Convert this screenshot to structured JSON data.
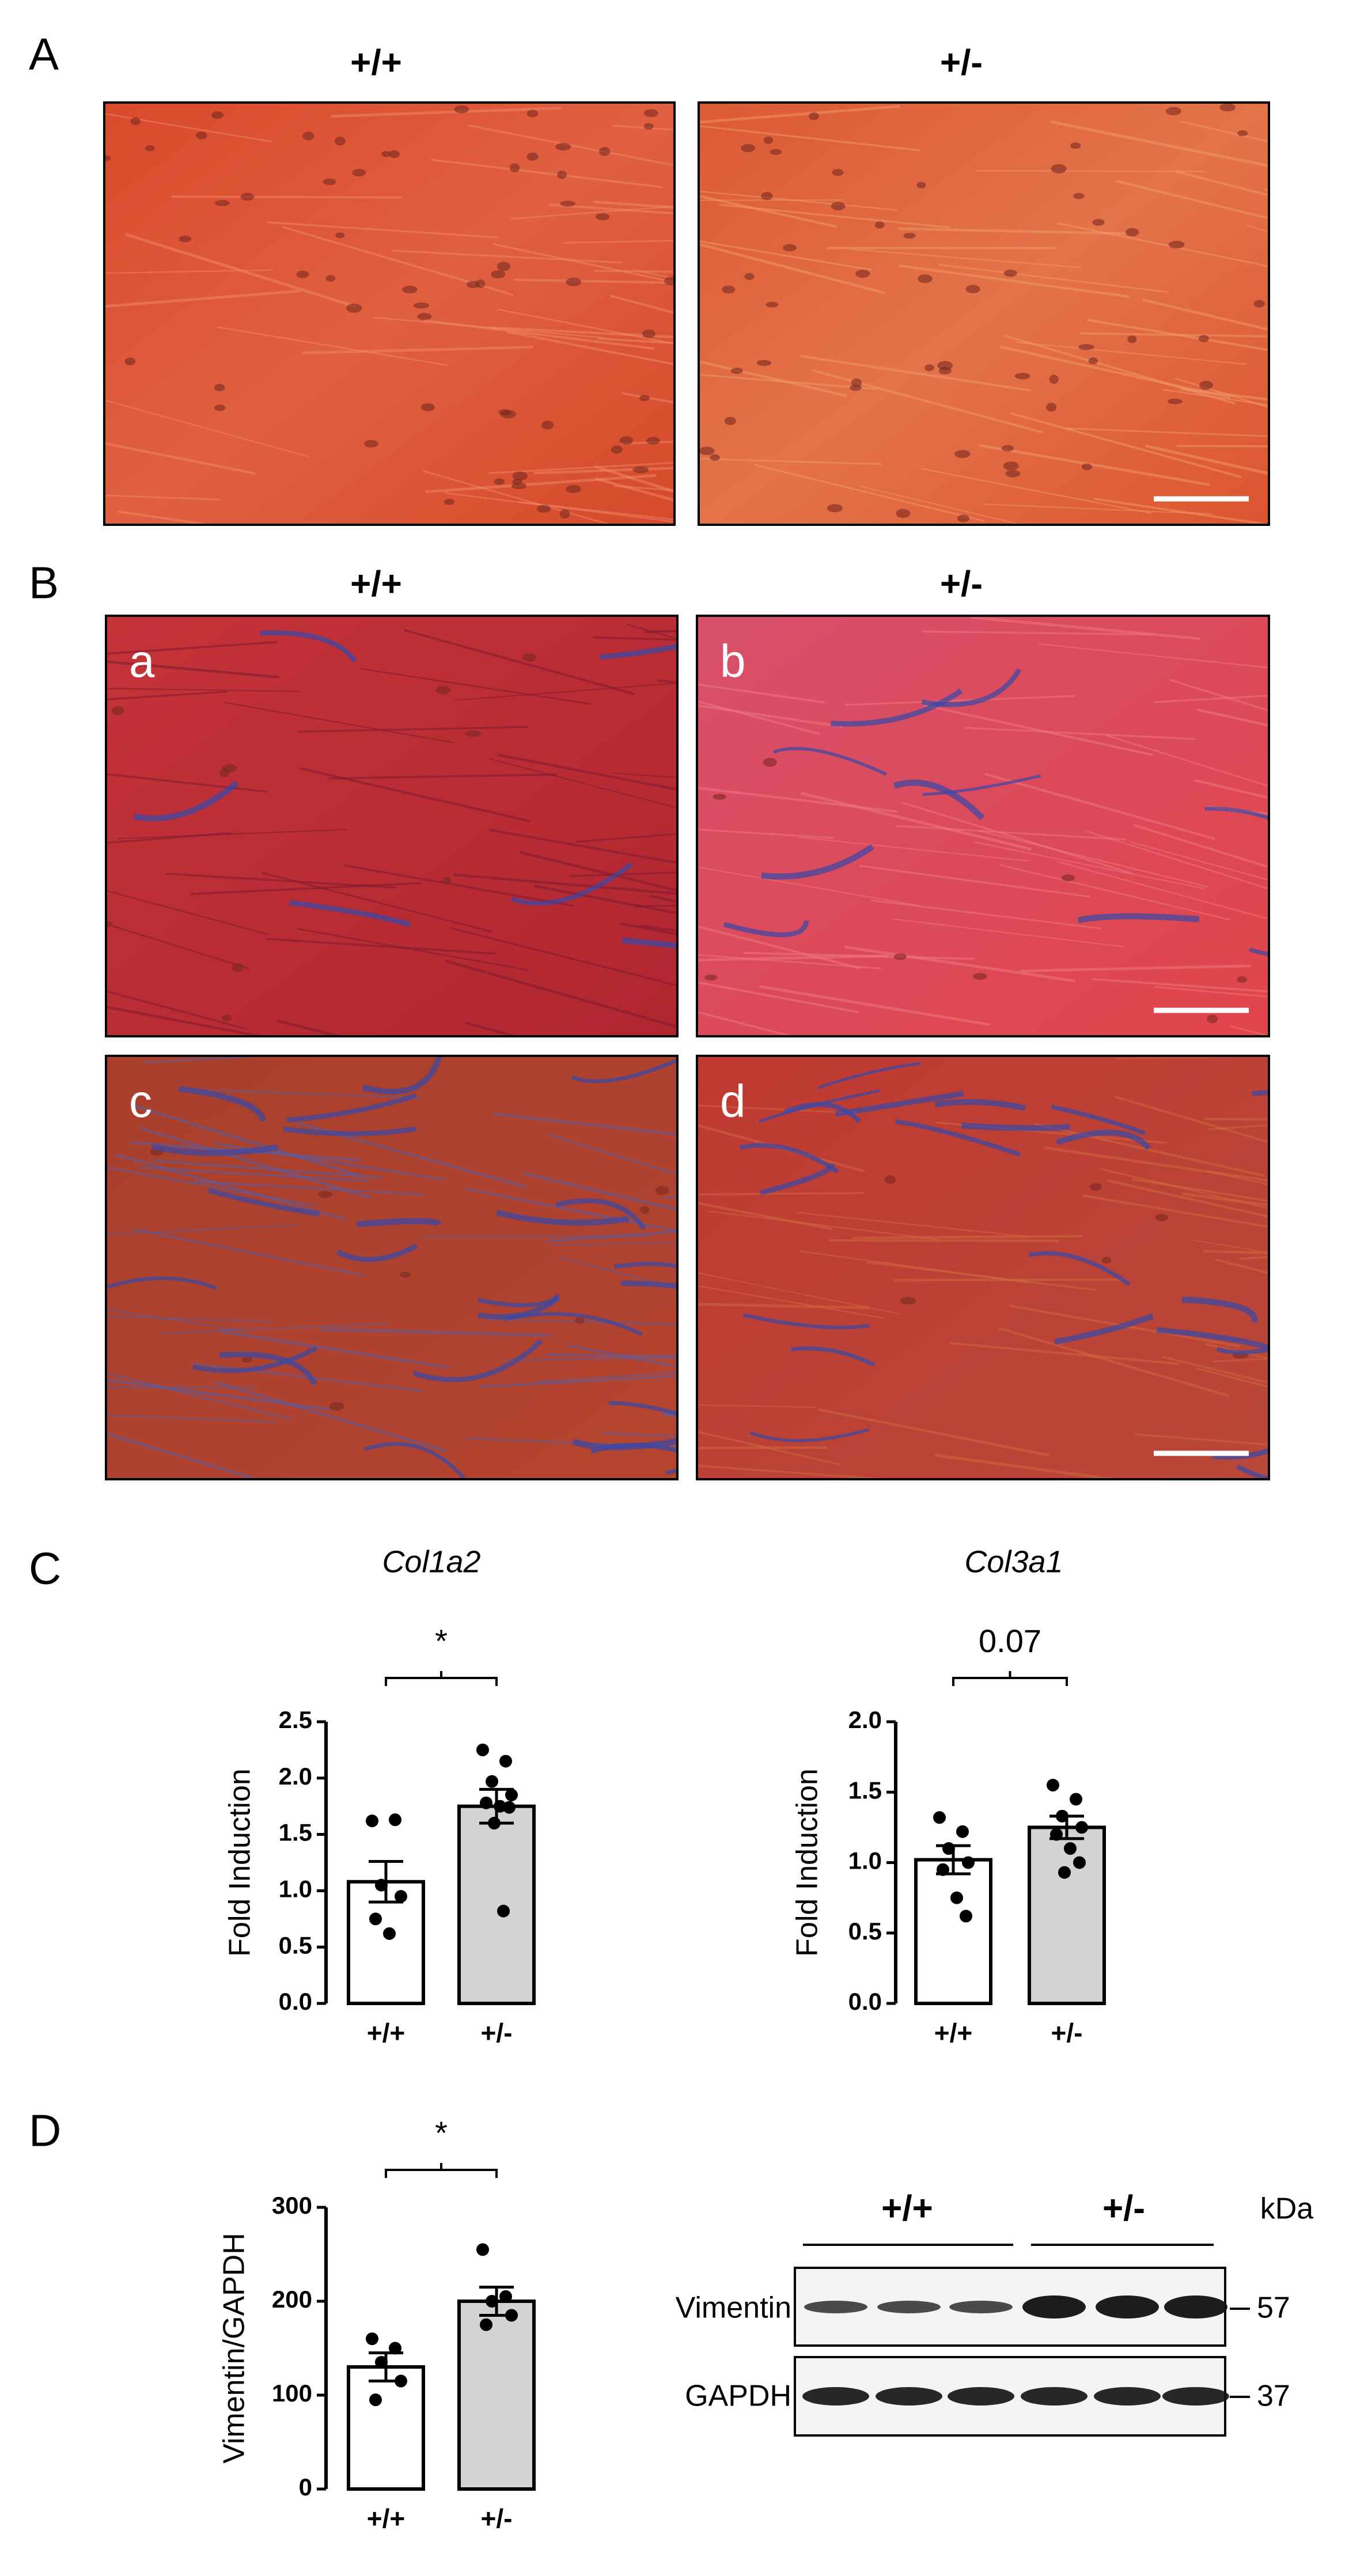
{
  "panels": {
    "A": {
      "label": "A",
      "col_left": "+/+",
      "col_right": "+/-"
    },
    "B": {
      "label": "B",
      "col_left": "+/+",
      "col_right": "+/-",
      "images": [
        "a",
        "b",
        "c",
        "d"
      ]
    },
    "C": {
      "label": "C"
    },
    "D": {
      "label": "D",
      "blot": {
        "groups": [
          "+/+",
          "+/-"
        ],
        "unit": "kDa",
        "rows": [
          {
            "name": "Vimentin",
            "size": "57"
          },
          {
            "name": "GAPDH",
            "size": "37"
          }
        ]
      }
    }
  },
  "chart_data": [
    {
      "type": "bar",
      "title": "Col1a2",
      "annotation": "*",
      "ylabel": "Fold Induction",
      "categories": [
        "+/+",
        "+/-"
      ],
      "values": [
        1.08,
        1.75
      ],
      "errors": [
        0.18,
        0.15
      ],
      "points": [
        [
          1.62,
          1.63,
          1.05,
          0.95,
          0.75,
          0.62
        ],
        [
          2.25,
          2.15,
          1.97,
          1.85,
          1.78,
          1.75,
          1.74,
          1.6,
          0.82
        ]
      ],
      "colors": [
        "#ffffff",
        "#d3d3d3"
      ],
      "ylim": [
        0,
        2.5
      ],
      "yticks": [
        {
          "value": 0,
          "label": "0.0"
        },
        {
          "value": 0.5,
          "label": "0.5"
        },
        {
          "value": 1,
          "label": "1.0"
        },
        {
          "value": 1.5,
          "label": "1.5"
        },
        {
          "value": 2,
          "label": "2.0"
        },
        {
          "value": 2.5,
          "label": "2.5"
        }
      ]
    },
    {
      "type": "bar",
      "title": "Col3a1",
      "annotation": "0.07",
      "ylabel": "Fold Induction",
      "categories": [
        "+/+",
        "+/-"
      ],
      "values": [
        1.02,
        1.25
      ],
      "errors": [
        0.1,
        0.08
      ],
      "points": [
        [
          1.32,
          1.22,
          1.1,
          1.0,
          0.95,
          0.75,
          0.62
        ],
        [
          1.55,
          1.45,
          1.33,
          1.25,
          1.2,
          1.1,
          1.0,
          0.93
        ]
      ],
      "colors": [
        "#ffffff",
        "#d3d3d3"
      ],
      "ylim": [
        0,
        2
      ],
      "yticks": [
        {
          "value": 0,
          "label": "0.0"
        },
        {
          "value": 0.5,
          "label": "0.5"
        },
        {
          "value": 1,
          "label": "1.0"
        },
        {
          "value": 1.5,
          "label": "1.5"
        },
        {
          "value": 2,
          "label": "2.0"
        }
      ]
    },
    {
      "type": "bar",
      "annotation": "*",
      "ylabel": "Vimentin/GAPDH",
      "categories": [
        "+/+",
        "+/-"
      ],
      "values": [
        130,
        200
      ],
      "errors": [
        15,
        15
      ],
      "points": [
        [
          160,
          150,
          135,
          115,
          95
        ],
        [
          255,
          205,
          200,
          185,
          175
        ]
      ],
      "colors": [
        "#ffffff",
        "#d3d3d3"
      ],
      "ylim": [
        0,
        300
      ],
      "yticks": [
        0,
        100,
        200,
        300
      ]
    }
  ]
}
